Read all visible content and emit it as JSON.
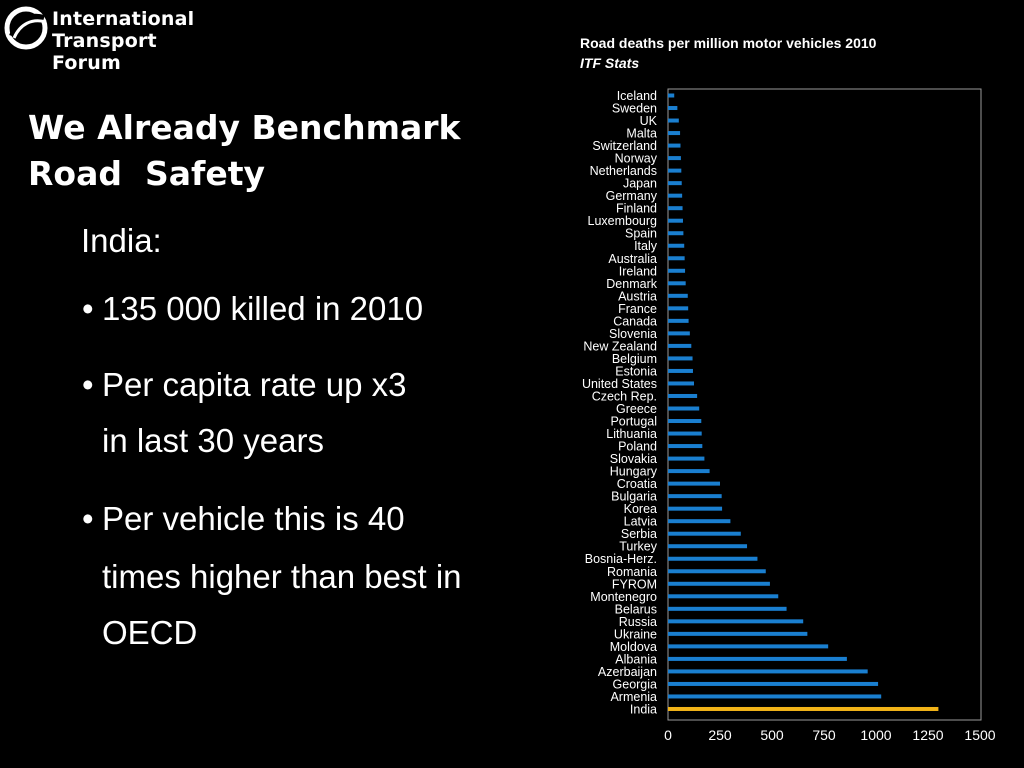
{
  "logo": {
    "line1": "International",
    "line2": "Transport Forum"
  },
  "slide": {
    "title_line1": "We Already Benchmark",
    "title_line2": "Road  Safety",
    "intro": "India:",
    "bullet1": "135 000 killed in 2010",
    "bullet2_a": "Per capita rate up x3",
    "bullet2_b": "in last 30 years",
    "bullet3_a": "Per vehicle this is 40",
    "bullet3_b": "times higher than best in",
    "bullet3_c": "OECD",
    "bullet_char": "•"
  },
  "chart_data": {
    "type": "bar",
    "orientation": "horizontal",
    "title": "Road deaths per million motor vehicles 2010",
    "subtitle": "ITF Stats",
    "categories": [
      "Iceland",
      "Sweden",
      "UK",
      "Malta",
      "Switzerland",
      "Norway",
      "Netherlands",
      "Japan",
      "Germany",
      "Finland",
      "Luxembourg",
      "Spain",
      "Italy",
      "Australia",
      "Ireland",
      "Denmark",
      "Austria",
      "France",
      "Canada",
      "Slovenia",
      "New Zealand",
      "Belgium",
      "Estonia",
      "United States",
      "Czech Rep.",
      "Greece",
      "Portugal",
      "Lithuania",
      "Poland",
      "Slovakia",
      "Hungary",
      "Croatia",
      "Bulgaria",
      "Korea",
      "Latvia",
      "Serbia",
      "Turkey",
      "Bosnia-Herz.",
      "Romania",
      "FYROM",
      "Montenegro",
      "Belarus",
      "Russia",
      "Ukraine",
      "Moldova",
      "Albania",
      "Azerbaijan",
      "Georgia",
      "Armenia",
      "India"
    ],
    "values": [
      30,
      45,
      52,
      58,
      60,
      62,
      64,
      66,
      68,
      70,
      72,
      74,
      78,
      80,
      82,
      85,
      95,
      97,
      99,
      105,
      112,
      118,
      120,
      125,
      140,
      150,
      160,
      162,
      165,
      175,
      200,
      250,
      258,
      260,
      300,
      350,
      380,
      430,
      470,
      490,
      530,
      570,
      650,
      670,
      770,
      860,
      960,
      1010,
      1025,
      1300
    ],
    "highlight": "India",
    "xlim": [
      0,
      1500
    ],
    "xticks": [
      0,
      250,
      500,
      750,
      1000,
      1250,
      1500
    ],
    "bar_color": "#1a7fd0",
    "highlight_color": "#f2b418",
    "grid": false
  }
}
